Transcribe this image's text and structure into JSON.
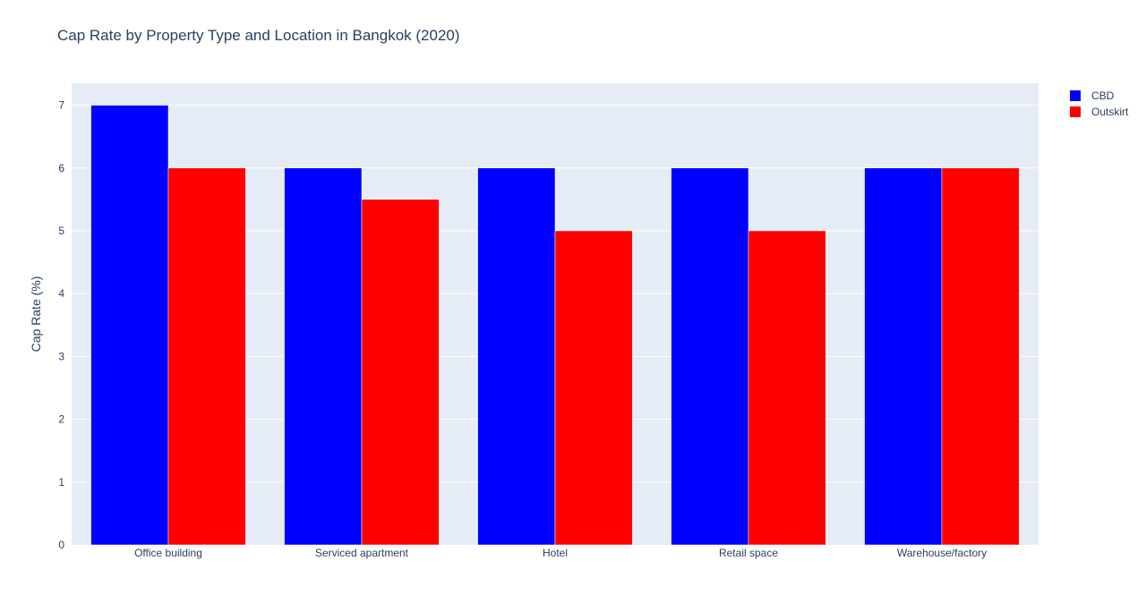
{
  "chart_data": {
    "type": "bar",
    "title": "Cap Rate by Property Type and Location in Bangkok (2020)",
    "xlabel": "",
    "ylabel": "Cap Rate (%)",
    "categories": [
      "Office building",
      "Serviced apartment",
      "Hotel",
      "Retail space",
      "Warehouse/factory"
    ],
    "series": [
      {
        "name": "CBD",
        "color": "#0000ff",
        "values": [
          7,
          6,
          6,
          6,
          6
        ]
      },
      {
        "name": "Outskirt",
        "color": "#ff0000",
        "values": [
          6,
          5.5,
          5,
          5,
          6
        ]
      }
    ],
    "ylim": [
      0,
      7.35
    ],
    "yticks": [
      "0",
      "1",
      "2",
      "3",
      "4",
      "5",
      "6",
      "7"
    ],
    "grid": true,
    "legend_position": "top-right",
    "plot_background": "#e5ecf6"
  }
}
